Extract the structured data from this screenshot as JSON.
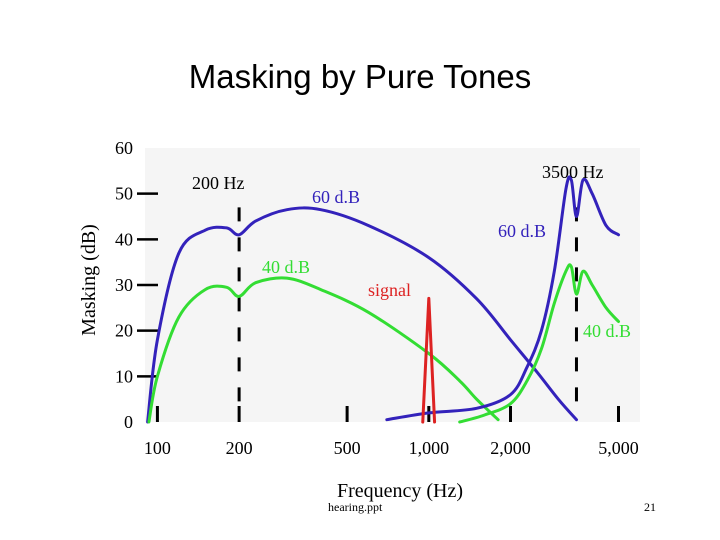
{
  "slide": {
    "title": "Masking by Pure Tones",
    "footer_file": "hearing.ppt",
    "page_number": "21"
  },
  "colors": {
    "masker_60": "#3322bb",
    "masker_40": "#33dd33",
    "signal": "#dd2222",
    "axis": "#000000",
    "plot_bg": "#f5f5f5"
  },
  "chart_data": {
    "type": "line",
    "title": "Masking by Pure Tones",
    "xlabel": "Frequency (Hz)",
    "ylabel": "Masking (dB)",
    "x_scale": "log",
    "xlim": [
      90,
      6000
    ],
    "ylim": [
      0,
      60
    ],
    "y_ticks": [
      0,
      10,
      20,
      30,
      40,
      50,
      60
    ],
    "y_tick_labels": [
      "0",
      "10",
      "20",
      "30",
      "40",
      "50",
      "60"
    ],
    "x_ticks": [
      100,
      200,
      500,
      1000,
      2000,
      5000
    ],
    "x_tick_labels": [
      "100",
      "200",
      "500",
      "1,000",
      "2,000",
      "5,000"
    ],
    "masker_markers": [
      {
        "freq": 200,
        "label": "200 Hz"
      },
      {
        "freq": 3500,
        "label": "3500 Hz"
      }
    ],
    "series": [
      {
        "name": "200 Hz masker, 60 dB",
        "label": "60 d.B",
        "color": "#3322bb",
        "points": [
          [
            92,
            0
          ],
          [
            100,
            18
          ],
          [
            120,
            37
          ],
          [
            150,
            42
          ],
          [
            180,
            42.5
          ],
          [
            200,
            41
          ],
          [
            230,
            44
          ],
          [
            300,
            46.5
          ],
          [
            400,
            46.5
          ],
          [
            600,
            43
          ],
          [
            1000,
            36
          ],
          [
            1500,
            27
          ],
          [
            2000,
            18
          ],
          [
            2500,
            11
          ],
          [
            3000,
            5
          ],
          [
            3500,
            0.5
          ]
        ]
      },
      {
        "name": "200 Hz masker, 40 dB",
        "label": "40 d.B",
        "color": "#33dd33",
        "points": [
          [
            93,
            0
          ],
          [
            100,
            10
          ],
          [
            120,
            23
          ],
          [
            150,
            29
          ],
          [
            180,
            29.5
          ],
          [
            200,
            27.5
          ],
          [
            230,
            30.5
          ],
          [
            300,
            31.5
          ],
          [
            400,
            29
          ],
          [
            600,
            24
          ],
          [
            1000,
            15
          ],
          [
            1300,
            9
          ],
          [
            1500,
            5
          ],
          [
            1800,
            0.5
          ]
        ]
      },
      {
        "name": "3500 Hz masker, 60 dB",
        "label": "60 d.B",
        "color": "#3322bb",
        "points": [
          [
            700,
            0.5
          ],
          [
            1000,
            2
          ],
          [
            1500,
            3
          ],
          [
            2000,
            6
          ],
          [
            2300,
            12
          ],
          [
            2600,
            20
          ],
          [
            2900,
            33
          ],
          [
            3200,
            51
          ],
          [
            3350,
            53
          ],
          [
            3500,
            45
          ],
          [
            3700,
            53
          ],
          [
            4000,
            50
          ],
          [
            4500,
            43
          ],
          [
            5000,
            41
          ]
        ]
      },
      {
        "name": "3500 Hz masker, 40 dB",
        "label": "40 d.B",
        "color": "#33dd33",
        "points": [
          [
            1300,
            0
          ],
          [
            1600,
            1.5
          ],
          [
            2000,
            4
          ],
          [
            2300,
            9
          ],
          [
            2600,
            16
          ],
          [
            2900,
            26
          ],
          [
            3200,
            33
          ],
          [
            3350,
            34
          ],
          [
            3500,
            28
          ],
          [
            3700,
            33
          ],
          [
            4000,
            30
          ],
          [
            4500,
            25
          ],
          [
            5000,
            22
          ]
        ]
      },
      {
        "name": "signal",
        "label": "signal",
        "color": "#dd2222",
        "points": [
          [
            950,
            0
          ],
          [
            1000,
            27
          ],
          [
            1050,
            0
          ]
        ]
      }
    ]
  }
}
